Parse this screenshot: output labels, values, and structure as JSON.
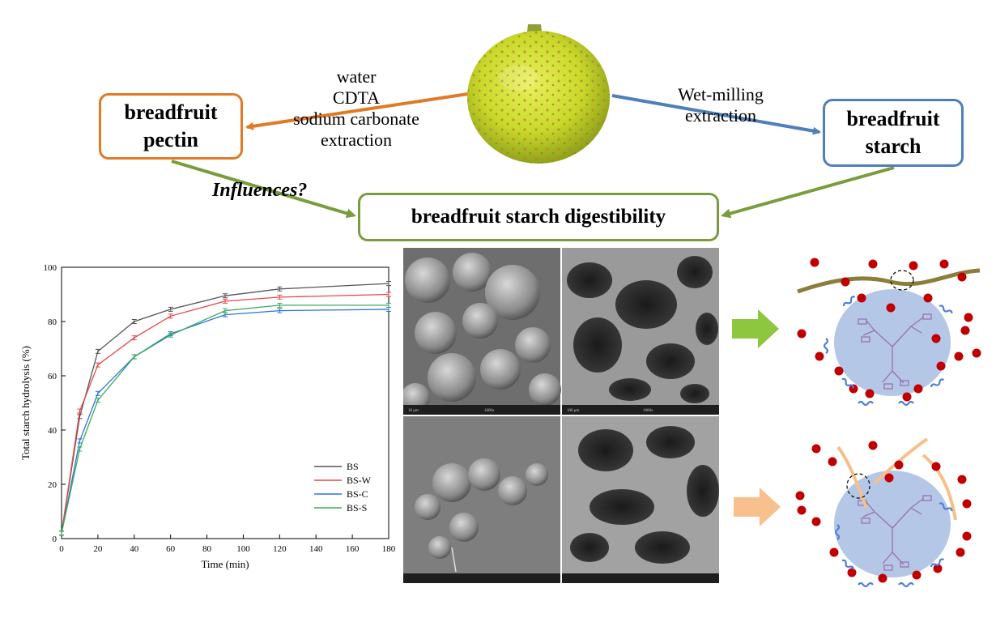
{
  "boxes": {
    "pectin": [
      "breadfruit",
      "pectin"
    ],
    "starch": [
      "breadfruit",
      "starch"
    ],
    "digestibility": "breadfruit starch digestibility"
  },
  "labels": {
    "extraction_left": [
      "water",
      "CDTA",
      "sodium carbonate",
      "extraction"
    ],
    "extraction_right": [
      "Wet-milling",
      "extraction"
    ],
    "question": "Influences?"
  },
  "colors": {
    "pectin_arrow": "#E07B25",
    "starch_arrow": "#4E7FB8",
    "influence_arrow": "#7A9C3C",
    "green_block_arrow": "#8DC63F",
    "orange_block_arrow": "#F7C08C",
    "granule": "#B4C7E7",
    "molecule_dots": "#C00000",
    "pectin_chain_1": "#8B7D3A",
    "pectin_chain_2": "#F5C08A"
  },
  "chart_data": {
    "type": "line",
    "title": "",
    "xlabel": "Time (min)",
    "ylabel": "Total starch hydrolysis (%)",
    "xlim": [
      0,
      180
    ],
    "ylim": [
      0,
      100
    ],
    "xticks": [
      "0",
      "20",
      "40",
      "60",
      "80",
      "100",
      "120",
      "140",
      "160",
      "180"
    ],
    "yticks": [
      "0",
      "20",
      "40",
      "60",
      "80",
      "100"
    ],
    "grid": false,
    "legend_position": "bottom-right",
    "x": [
      0,
      10,
      20,
      40,
      60,
      90,
      120,
      180
    ],
    "series": [
      {
        "name": "BS",
        "color": "#555555",
        "values": [
          2,
          45,
          69,
          80,
          84.5,
          89.5,
          92,
          94
        ]
      },
      {
        "name": "BS-W",
        "color": "#E8464B",
        "values": [
          2,
          47,
          64,
          74,
          82,
          87.5,
          89,
          90
        ]
      },
      {
        "name": "BS-C",
        "color": "#2E74D6",
        "values": [
          2,
          36,
          53.5,
          67,
          75.5,
          82.5,
          84,
          84.5
        ]
      },
      {
        "name": "BS-S",
        "color": "#3AAA5C",
        "values": [
          2,
          33,
          51,
          67,
          75,
          84,
          86,
          86
        ]
      }
    ]
  },
  "micrographs": {
    "footer_captions": [
      "10 μm",
      "1000x",
      "100 μm",
      "1000x"
    ]
  }
}
